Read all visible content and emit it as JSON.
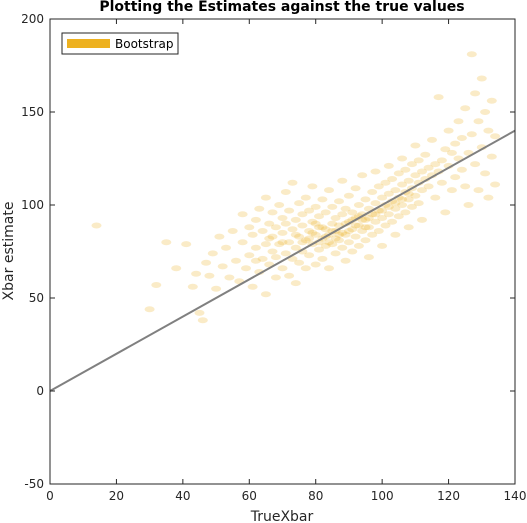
{
  "chart_data": {
    "type": "scatter",
    "title": "Plotting the Estimates against the true values",
    "xlabel": "TrueXbar",
    "ylabel": "Xbar estimate",
    "xlim": [
      0,
      140
    ],
    "ylim": [
      -50,
      200
    ],
    "xticks": [
      0,
      20,
      40,
      60,
      80,
      100,
      120,
      140
    ],
    "yticks": [
      -50,
      0,
      50,
      100,
      150,
      200
    ],
    "grid": false,
    "legend_position": "top-left",
    "series": [
      {
        "name": "Bootstrap",
        "kind": "scatter",
        "color": "#EDB120",
        "opacity": 0.25,
        "points": [
          [
            14,
            89
          ],
          [
            30,
            44
          ],
          [
            32,
            57
          ],
          [
            35,
            80
          ],
          [
            38,
            66
          ],
          [
            41,
            79
          ],
          [
            43,
            56
          ],
          [
            44,
            63
          ],
          [
            45,
            42
          ],
          [
            46,
            38
          ],
          [
            47,
            69
          ],
          [
            48,
            62
          ],
          [
            49,
            74
          ],
          [
            50,
            55
          ],
          [
            51,
            83
          ],
          [
            52,
            67
          ],
          [
            53,
            77
          ],
          [
            54,
            61
          ],
          [
            55,
            86
          ],
          [
            56,
            70
          ],
          [
            57,
            59
          ],
          [
            58,
            80
          ],
          [
            58,
            95
          ],
          [
            59,
            66
          ],
          [
            60,
            73
          ],
          [
            60,
            88
          ],
          [
            61,
            56
          ],
          [
            61,
            84
          ],
          [
            62,
            77
          ],
          [
            62,
            92
          ],
          [
            63,
            64
          ],
          [
            63,
            98
          ],
          [
            64,
            71
          ],
          [
            64,
            86
          ],
          [
            65,
            52
          ],
          [
            65,
            79
          ],
          [
            65,
            104
          ],
          [
            66,
            68
          ],
          [
            66,
            90
          ],
          [
            67,
            75
          ],
          [
            67,
            83
          ],
          [
            67,
            96
          ],
          [
            68,
            61
          ],
          [
            68,
            72
          ],
          [
            68,
            88
          ],
          [
            69,
            79
          ],
          [
            69,
            100
          ],
          [
            70,
            66
          ],
          [
            70,
            85
          ],
          [
            70,
            93
          ],
          [
            71,
            74
          ],
          [
            71,
            90
          ],
          [
            71,
            107
          ],
          [
            72,
            62
          ],
          [
            72,
            80
          ],
          [
            72,
            97
          ],
          [
            73,
            71
          ],
          [
            73,
            87
          ],
          [
            73,
            112
          ],
          [
            74,
            77
          ],
          [
            74,
            92
          ],
          [
            74,
            58
          ],
          [
            75,
            83
          ],
          [
            75,
            101
          ],
          [
            75,
            69
          ],
          [
            76,
            75
          ],
          [
            76,
            89
          ],
          [
            76,
            95
          ],
          [
            77,
            81
          ],
          [
            77,
            66
          ],
          [
            77,
            104
          ],
          [
            78,
            86
          ],
          [
            78,
            73
          ],
          [
            78,
            97
          ],
          [
            79,
            79
          ],
          [
            79,
            91
          ],
          [
            79,
            110
          ],
          [
            80,
            68
          ],
          [
            80,
            84
          ],
          [
            80,
            99
          ],
          [
            81,
            76
          ],
          [
            81,
            88
          ],
          [
            81,
            94
          ],
          [
            82,
            82
          ],
          [
            82,
            71
          ],
          [
            82,
            103
          ],
          [
            83,
            87
          ],
          [
            83,
            78
          ],
          [
            83,
            96
          ],
          [
            84,
            84
          ],
          [
            84,
            66
          ],
          [
            84,
            108
          ],
          [
            85,
            90
          ],
          [
            85,
            79
          ],
          [
            85,
            99
          ],
          [
            86,
            86
          ],
          [
            86,
            74
          ],
          [
            86,
            93
          ],
          [
            87,
            81
          ],
          [
            87,
            102
          ],
          [
            87,
            89
          ],
          [
            88,
            77
          ],
          [
            88,
            95
          ],
          [
            88,
            113
          ],
          [
            89,
            84
          ],
          [
            89,
            70
          ],
          [
            89,
            98
          ],
          [
            90,
            91
          ],
          [
            90,
            80
          ],
          [
            90,
            105
          ],
          [
            91,
            87
          ],
          [
            91,
            96
          ],
          [
            91,
            75
          ],
          [
            92,
            93
          ],
          [
            92,
            83
          ],
          [
            92,
            109
          ],
          [
            93,
            89
          ],
          [
            93,
            100
          ],
          [
            93,
            78
          ],
          [
            94,
            95
          ],
          [
            94,
            86
          ],
          [
            94,
            116
          ],
          [
            95,
            92
          ],
          [
            95,
            103
          ],
          [
            95,
            81
          ],
          [
            96,
            98
          ],
          [
            96,
            88
          ],
          [
            96,
            72
          ],
          [
            97,
            95
          ],
          [
            97,
            107
          ],
          [
            97,
            84
          ],
          [
            98,
            101
          ],
          [
            98,
            91
          ],
          [
            98,
            118
          ],
          [
            99,
            97
          ],
          [
            99,
            110
          ],
          [
            99,
            86
          ],
          [
            100,
            104
          ],
          [
            100,
            93
          ],
          [
            100,
            78
          ],
          [
            101,
            100
          ],
          [
            101,
            112
          ],
          [
            101,
            89
          ],
          [
            102,
            106
          ],
          [
            102,
            95
          ],
          [
            102,
            121
          ],
          [
            103,
            102
          ],
          [
            103,
            114
          ],
          [
            103,
            91
          ],
          [
            104,
            108
          ],
          [
            104,
            98
          ],
          [
            104,
            84
          ],
          [
            105,
            104
          ],
          [
            105,
            117
          ],
          [
            105,
            94
          ],
          [
            106,
            111
          ],
          [
            106,
            100
          ],
          [
            106,
            125
          ],
          [
            107,
            107
          ],
          [
            107,
            119
          ],
          [
            107,
            96
          ],
          [
            108,
            113
          ],
          [
            108,
            103
          ],
          [
            108,
            88
          ],
          [
            109,
            109
          ],
          [
            109,
            122
          ],
          [
            109,
            99
          ],
          [
            110,
            116
          ],
          [
            110,
            105
          ],
          [
            110,
            132
          ],
          [
            111,
            112
          ],
          [
            111,
            124
          ],
          [
            111,
            101
          ],
          [
            112,
            118
          ],
          [
            112,
            108
          ],
          [
            112,
            92
          ],
          [
            113,
            114
          ],
          [
            113,
            127
          ],
          [
            114,
            120
          ],
          [
            114,
            110
          ],
          [
            115,
            116
          ],
          [
            115,
            135
          ],
          [
            116,
            122
          ],
          [
            116,
            104
          ],
          [
            117,
            118
          ],
          [
            117,
            158
          ],
          [
            118,
            124
          ],
          [
            118,
            112
          ],
          [
            119,
            130
          ],
          [
            119,
            96
          ],
          [
            120,
            121
          ],
          [
            120,
            140
          ],
          [
            121,
            128
          ],
          [
            121,
            108
          ],
          [
            122,
            133
          ],
          [
            122,
            115
          ],
          [
            123,
            125
          ],
          [
            123,
            145
          ],
          [
            124,
            119
          ],
          [
            124,
            136
          ],
          [
            125,
            110
          ],
          [
            125,
            152
          ],
          [
            126,
            128
          ],
          [
            126,
            100
          ],
          [
            127,
            138
          ],
          [
            127,
            181
          ],
          [
            128,
            122
          ],
          [
            128,
            160
          ],
          [
            129,
            145
          ],
          [
            129,
            108
          ],
          [
            130,
            131
          ],
          [
            130,
            168
          ],
          [
            131,
            117
          ],
          [
            131,
            150
          ],
          [
            132,
            140
          ],
          [
            132,
            104
          ],
          [
            133,
            126
          ],
          [
            133,
            156
          ],
          [
            134,
            111
          ],
          [
            134,
            137
          ],
          [
            62,
            70
          ],
          [
            66,
            82
          ],
          [
            70,
            80
          ],
          [
            74,
            84
          ],
          [
            78,
            82
          ],
          [
            80,
            90
          ],
          [
            82,
            88
          ],
          [
            84,
            80
          ],
          [
            86,
            82
          ],
          [
            88,
            85
          ],
          [
            90,
            86
          ],
          [
            92,
            89
          ],
          [
            94,
            92
          ],
          [
            96,
            93
          ],
          [
            98,
            95
          ],
          [
            100,
            97
          ],
          [
            102,
            99
          ],
          [
            104,
            101
          ],
          [
            106,
            103
          ],
          [
            108,
            106
          ],
          [
            76,
            80
          ],
          [
            79,
            85
          ],
          [
            81,
            80
          ],
          [
            83,
            83
          ],
          [
            85,
            86
          ],
          [
            87,
            84
          ],
          [
            89,
            90
          ],
          [
            91,
            92
          ],
          [
            93,
            94
          ],
          [
            95,
            88
          ]
        ]
      },
      {
        "name": "",
        "kind": "line",
        "color": "#808080",
        "x": [
          0,
          140
        ],
        "y": [
          0,
          140
        ]
      }
    ]
  }
}
